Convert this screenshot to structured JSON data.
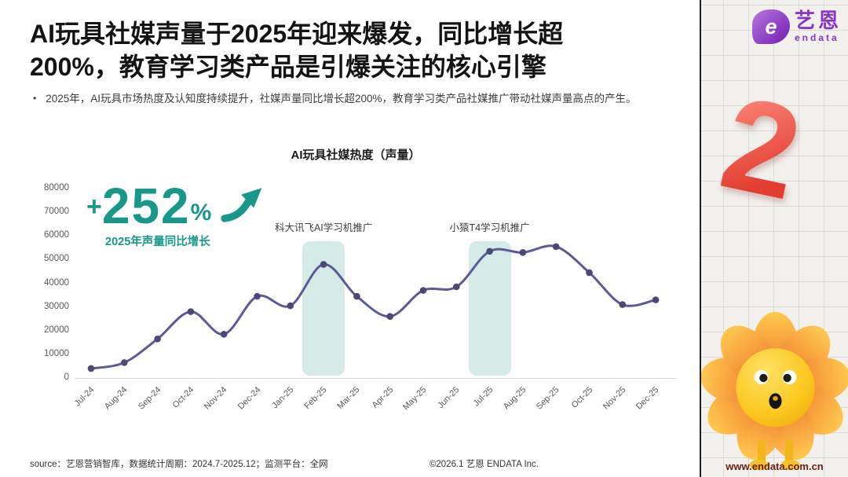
{
  "slide": {
    "title_line1": "AI玩具社媒声量于2025年迎来爆发，同比增长超",
    "title_line2": "200%，教育学习类产品是引爆关注的核心引擎",
    "bullet_marker": "•",
    "bullet": "2025年，AI玩具市场热度及认知度持续提升，社媒声量同比增长超200%，教育学习类产品社媒推广带动社媒声量高点的产生。",
    "footer": {
      "source": "source：艺恩营销智库，数据统计周期：2024.7-2025.12；监测平台：全网",
      "copyright": "©2026.1  艺恩 ENDATA Inc."
    }
  },
  "growth": {
    "plus": "+",
    "value": "252",
    "percent": "%",
    "caption": "2025年声量同比增长",
    "accent_color": "#18988b"
  },
  "chart_data": {
    "type": "line",
    "title": "AI玩具社媒热度（声量）",
    "categories": [
      "Jul-24",
      "Aug-24",
      "Sep-24",
      "Oct-24",
      "Nov-24",
      "Dec-24",
      "Jan-25",
      "Feb-25",
      "Mar-25",
      "Apr-25",
      "May-25",
      "Jun-25",
      "Jul-25",
      "Aug-25",
      "Sep-25",
      "Oct-25",
      "Nov-25",
      "Dec-25"
    ],
    "series": [
      {
        "name": "声量",
        "values": [
          4000,
          6500,
          16500,
          28000,
          18500,
          34500,
          30500,
          48000,
          34500,
          26000,
          37000,
          38500,
          53500,
          53000,
          55500,
          44500,
          31000,
          33000
        ]
      }
    ],
    "ylim": [
      0,
      80000
    ],
    "yticks": [
      0,
      10000,
      20000,
      30000,
      40000,
      50000,
      60000,
      70000,
      80000
    ],
    "grid": false,
    "legend": "none",
    "line_color": "#5b5b99",
    "marker_color": "#4c4879",
    "axis_line_color": "#d9d9d9",
    "axis_text_color": "#595959",
    "annotations": [
      {
        "label": "科大讯飞AI学习机推广",
        "category": "Feb-25",
        "band_color": "#d4ebe7"
      },
      {
        "label": "小猿T4学习机推广",
        "category": "Jul-25",
        "band_color": "#d4ebe7"
      }
    ]
  },
  "sidebar": {
    "logo": {
      "e_glyph": "e",
      "brand_cn": "艺恩",
      "brand_en": "endata",
      "color": "#8a35c8"
    },
    "page_number": "2",
    "website": "www.endata.com.cn"
  }
}
